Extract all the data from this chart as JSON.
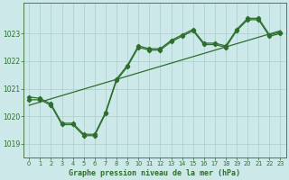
{
  "title": "Graphe pression niveau de la mer (hPa)",
  "background_color": "#cce8e8",
  "grid_color": "#aacece",
  "line_color": "#2d6e2d",
  "xlim": [
    -0.5,
    23.5
  ],
  "ylim": [
    1018.5,
    1024.1
  ],
  "xticks": [
    0,
    1,
    2,
    3,
    4,
    5,
    6,
    7,
    8,
    9,
    10,
    11,
    12,
    13,
    14,
    15,
    16,
    17,
    18,
    19,
    20,
    21,
    22,
    23
  ],
  "yticks": [
    1019,
    1020,
    1021,
    1022,
    1023
  ],
  "series1_x": [
    0,
    1,
    2,
    3,
    4,
    5,
    6,
    7,
    8,
    9,
    10,
    11,
    12,
    13,
    14,
    15,
    16,
    17,
    18,
    19,
    20,
    21,
    22,
    23
  ],
  "series1_y": [
    1020.6,
    1020.6,
    1020.4,
    1019.7,
    1019.7,
    1019.3,
    1019.3,
    1020.1,
    1021.3,
    1021.8,
    1022.5,
    1022.4,
    1022.4,
    1022.7,
    1022.9,
    1023.1,
    1022.6,
    1022.6,
    1022.5,
    1023.1,
    1023.5,
    1023.5,
    1022.9,
    1023.0
  ],
  "series2_x": [
    0,
    1,
    2,
    3,
    4,
    5,
    6,
    7,
    8,
    9,
    10,
    11,
    12,
    13,
    14,
    15,
    16,
    17,
    18,
    19,
    20,
    21,
    22,
    23
  ],
  "series2_y": [
    1020.7,
    1020.65,
    1020.45,
    1019.75,
    1019.75,
    1019.35,
    1019.35,
    1020.15,
    1021.35,
    1021.85,
    1022.55,
    1022.45,
    1022.45,
    1022.75,
    1022.95,
    1023.15,
    1022.65,
    1022.65,
    1022.55,
    1023.15,
    1023.55,
    1023.55,
    1022.95,
    1023.05
  ],
  "series3_x": [
    0,
    23
  ],
  "series3_y": [
    1020.4,
    1023.1
  ]
}
